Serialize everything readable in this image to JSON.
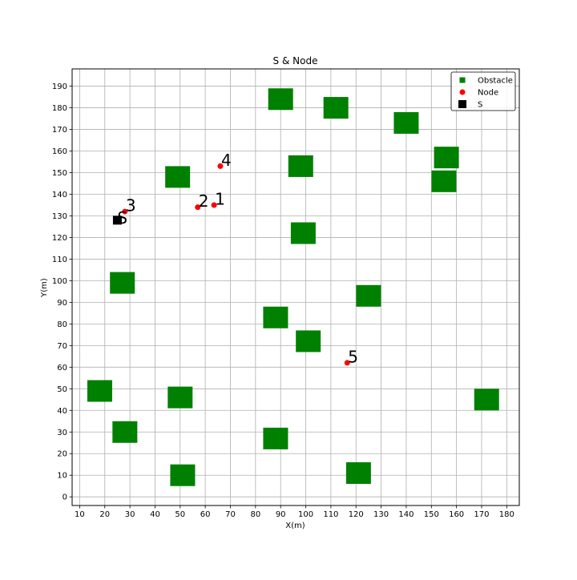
{
  "chart_data": {
    "type": "scatter",
    "title": "S & Node",
    "xlabel": "X(m)",
    "ylabel": "Y(m)",
    "xlim": [
      7,
      185
    ],
    "ylim": [
      -4,
      198
    ],
    "xticks": [
      10,
      20,
      30,
      40,
      50,
      60,
      70,
      80,
      90,
      100,
      110,
      120,
      130,
      140,
      150,
      160,
      170,
      180
    ],
    "yticks": [
      0,
      10,
      20,
      30,
      40,
      50,
      60,
      70,
      80,
      90,
      100,
      110,
      120,
      130,
      140,
      150,
      160,
      170,
      180,
      190
    ],
    "grid": true,
    "legend_position": "top-right",
    "legend": [
      {
        "label": "Obstacle",
        "marker": "square",
        "color": "#008000"
      },
      {
        "label": "Node",
        "marker": "circle",
        "color": "#ff0000"
      },
      {
        "label": "S",
        "marker": "square",
        "color": "#000000"
      }
    ],
    "series": [
      {
        "name": "Obstacle",
        "color": "#008000",
        "marker": "square",
        "points": [
          {
            "x": 90,
            "y": 184
          },
          {
            "x": 112,
            "y": 180
          },
          {
            "x": 140,
            "y": 173
          },
          {
            "x": 156,
            "y": 157
          },
          {
            "x": 155,
            "y": 146
          },
          {
            "x": 98,
            "y": 153
          },
          {
            "x": 49,
            "y": 148
          },
          {
            "x": 99,
            "y": 122
          },
          {
            "x": 27,
            "y": 99
          },
          {
            "x": 125,
            "y": 93
          },
          {
            "x": 88,
            "y": 83
          },
          {
            "x": 101,
            "y": 72
          },
          {
            "x": 18,
            "y": 49
          },
          {
            "x": 50,
            "y": 46
          },
          {
            "x": 172,
            "y": 45
          },
          {
            "x": 28,
            "y": 30
          },
          {
            "x": 88,
            "y": 27
          },
          {
            "x": 51,
            "y": 10
          },
          {
            "x": 121,
            "y": 11
          }
        ]
      },
      {
        "name": "Node",
        "color": "#ff0000",
        "marker": "circle",
        "points": [
          {
            "label": "1",
            "x": 63.5,
            "y": 135
          },
          {
            "label": "2",
            "x": 57,
            "y": 134
          },
          {
            "label": "3",
            "x": 28,
            "y": 132
          },
          {
            "label": "4",
            "x": 66,
            "y": 153
          },
          {
            "label": "5",
            "x": 116.5,
            "y": 62
          }
        ]
      },
      {
        "name": "S",
        "color": "#000000",
        "marker": "square",
        "points": [
          {
            "label": "S",
            "x": 25,
            "y": 128
          }
        ]
      }
    ]
  }
}
